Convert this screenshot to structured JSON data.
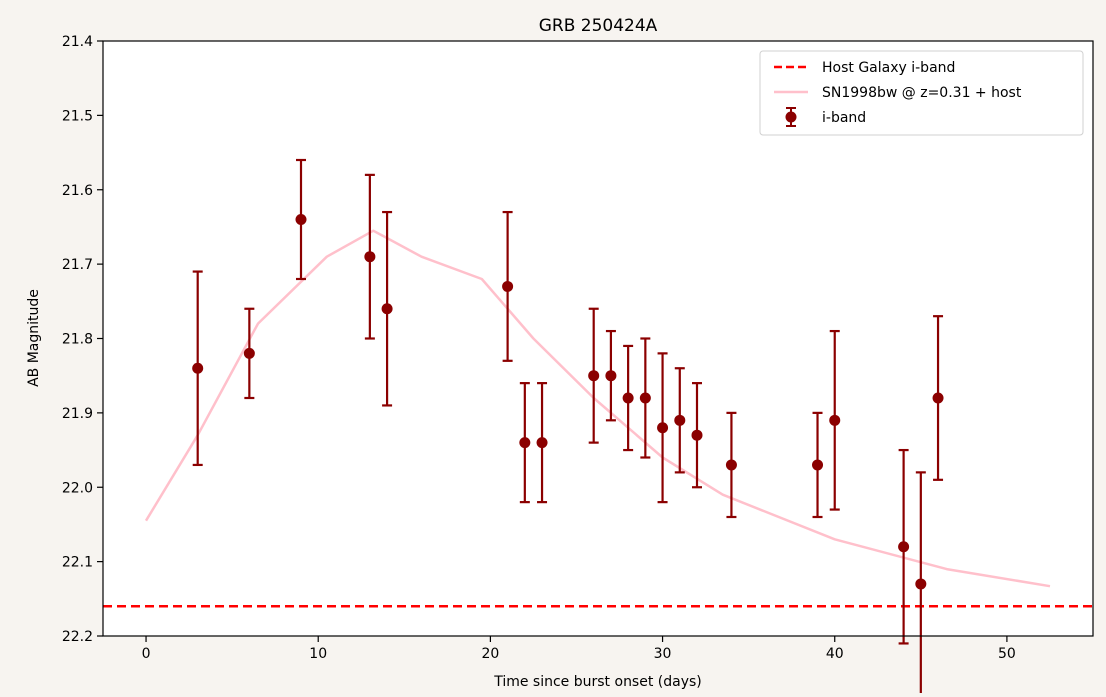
{
  "chart_data": {
    "type": "scatter",
    "title": "GRB 250424A",
    "xlabel": "Time since burst onset (days)",
    "ylabel": "AB Magnitude",
    "xlim": [
      -2.5,
      55
    ],
    "ylim": [
      22.2,
      21.4
    ],
    "y_inverted": true,
    "grid": false,
    "legend_placement": "top-right",
    "x_ticks": [
      0,
      10,
      20,
      30,
      40,
      50
    ],
    "y_ticks": [
      21.4,
      21.5,
      21.6,
      21.7,
      21.8,
      21.9,
      22.0,
      22.1,
      22.2
    ],
    "x_tick_labels": [
      "0",
      "10",
      "20",
      "30",
      "40",
      "50"
    ],
    "y_tick_labels": [
      "21.4",
      "21.5",
      "21.6",
      "21.7",
      "21.8",
      "21.9",
      "22.0",
      "22.1",
      "22.2"
    ],
    "series": [
      {
        "name": "Host Galaxy i-band",
        "kind": "hline",
        "style": "dashed",
        "color": "#ff0000",
        "y": 22.16
      },
      {
        "name": "SN1998bw @ z=0.31 + host",
        "kind": "line",
        "color": "#ffc0cb",
        "x": [
          0,
          3,
          6.5,
          10.5,
          13.2,
          16,
          19.5,
          22.5,
          26,
          30,
          33.5,
          40,
          46.5,
          52.5
        ],
        "y": [
          22.045,
          21.93,
          21.78,
          21.69,
          21.655,
          21.69,
          21.72,
          21.8,
          21.88,
          21.96,
          22.01,
          22.07,
          22.11,
          22.133
        ]
      },
      {
        "name": "i-band",
        "kind": "errorbar",
        "color": "#8b0000",
        "x": [
          3,
          6,
          9,
          13,
          14,
          21,
          22,
          23,
          26,
          27,
          28,
          29,
          30,
          31,
          32,
          34,
          39,
          40,
          44,
          45,
          46
        ],
        "y": [
          21.84,
          21.82,
          21.64,
          21.69,
          21.76,
          21.73,
          21.94,
          21.94,
          21.85,
          21.85,
          21.88,
          21.88,
          21.92,
          21.91,
          21.93,
          21.97,
          21.97,
          21.91,
          22.08,
          22.13,
          21.88
        ],
        "yerr": [
          0.13,
          0.06,
          0.08,
          0.11,
          0.13,
          0.1,
          0.08,
          0.08,
          0.09,
          0.06,
          0.07,
          0.08,
          0.1,
          0.07,
          0.07,
          0.07,
          0.07,
          0.12,
          0.13,
          0.15,
          0.11
        ]
      }
    ]
  }
}
